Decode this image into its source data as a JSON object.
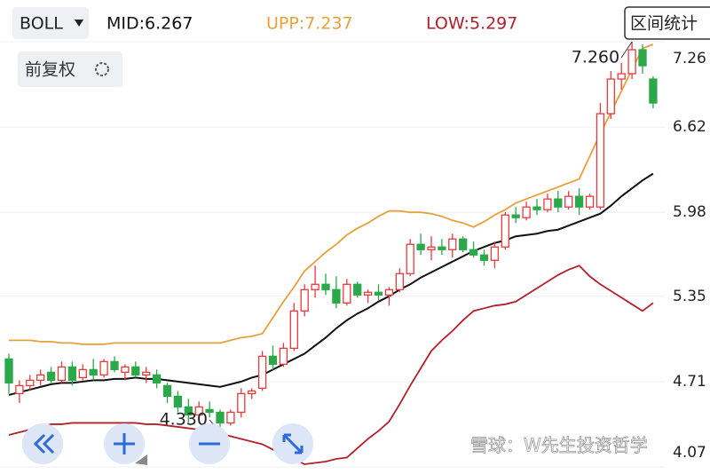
{
  "header": {
    "indicator": "BOLL",
    "mid": "MID:6.267",
    "upp": "UPP:7.237",
    "low": "LOW:5.297",
    "button": "区间统计"
  },
  "adjust": "前复权",
  "watermark": "雪球：W先生投资哲学",
  "chart_data": {
    "type": "candlestick",
    "up_color": "#e8393d",
    "down_color": "#2aa84a",
    "open": [
      4.88,
      4.62,
      4.68,
      4.72,
      4.78,
      4.72,
      4.82,
      4.74,
      4.8,
      4.76,
      4.86,
      4.78,
      4.82,
      4.76,
      4.76,
      4.68,
      4.6,
      4.52,
      4.46,
      4.5,
      4.48,
      4.4,
      4.48,
      4.62,
      4.66,
      4.9,
      4.84,
      4.96,
      5.24,
      5.4,
      5.44,
      5.4,
      5.3,
      5.44,
      5.36,
      5.38,
      5.36,
      5.4,
      5.52,
      5.74,
      5.7,
      5.72,
      5.7,
      5.78,
      5.7,
      5.66,
      5.62,
      5.72,
      5.96,
      5.94,
      6.02,
      6.0,
      6.08,
      6.02,
      6.1,
      6.02,
      6.02,
      6.72,
      6.98,
      7.02,
      7.2,
      6.98
    ],
    "high": [
      4.92,
      4.72,
      4.76,
      4.8,
      4.82,
      4.86,
      4.86,
      4.84,
      4.88,
      4.88,
      4.9,
      4.84,
      4.86,
      4.82,
      4.8,
      4.7,
      4.64,
      4.58,
      4.56,
      4.56,
      4.5,
      4.5,
      4.66,
      4.66,
      4.94,
      4.98,
      5.0,
      5.3,
      5.44,
      5.58,
      5.52,
      5.5,
      5.48,
      5.46,
      5.4,
      5.44,
      5.42,
      5.56,
      5.78,
      5.82,
      5.8,
      5.78,
      5.82,
      5.8,
      5.76,
      5.7,
      5.76,
      5.98,
      6.02,
      6.06,
      6.08,
      6.12,
      6.14,
      6.14,
      6.16,
      6.12,
      6.8,
      7.04,
      7.1,
      7.26,
      7.24,
      7.0
    ],
    "low": [
      4.62,
      4.55,
      4.64,
      4.68,
      4.7,
      4.7,
      4.68,
      4.72,
      4.72,
      4.74,
      4.78,
      4.72,
      4.74,
      4.7,
      4.66,
      4.55,
      4.48,
      4.4,
      4.4,
      4.44,
      4.33,
      4.38,
      4.44,
      4.58,
      4.64,
      4.8,
      4.82,
      4.94,
      5.2,
      5.34,
      5.36,
      5.26,
      5.28,
      5.34,
      5.3,
      5.32,
      5.28,
      5.38,
      5.5,
      5.66,
      5.62,
      5.66,
      5.64,
      5.68,
      5.64,
      5.58,
      5.56,
      5.7,
      5.9,
      5.92,
      5.96,
      5.98,
      5.98,
      6.0,
      5.96,
      6.0,
      6.0,
      6.68,
      6.9,
      6.98,
      7.02,
      6.76
    ],
    "close": [
      4.7,
      4.68,
      4.72,
      4.76,
      4.72,
      4.82,
      4.72,
      4.8,
      4.76,
      4.86,
      4.8,
      4.82,
      4.76,
      4.78,
      4.7,
      4.6,
      4.52,
      4.46,
      4.52,
      4.48,
      4.4,
      4.48,
      4.62,
      4.64,
      4.9,
      4.84,
      4.96,
      5.24,
      5.4,
      5.44,
      5.4,
      5.3,
      5.44,
      5.36,
      5.38,
      5.36,
      5.4,
      5.52,
      5.74,
      5.7,
      5.72,
      5.7,
      5.78,
      5.7,
      5.66,
      5.62,
      5.72,
      5.96,
      5.94,
      6.02,
      6.0,
      6.08,
      6.02,
      6.1,
      6.02,
      6.1,
      6.72,
      6.98,
      7.02,
      7.2,
      7.08,
      6.8
    ],
    "bands": [
      {
        "color": "#111111",
        "values": [
          4.61,
          4.63,
          4.65,
          4.67,
          4.69,
          4.7,
          4.7,
          4.71,
          4.72,
          4.72,
          4.73,
          4.73,
          4.74,
          4.73,
          4.73,
          4.72,
          4.71,
          4.7,
          4.69,
          4.68,
          4.67,
          4.69,
          4.71,
          4.74,
          4.76,
          4.8,
          4.84,
          4.88,
          4.92,
          4.98,
          5.04,
          5.11,
          5.17,
          5.22,
          5.26,
          5.31,
          5.35,
          5.4,
          5.44,
          5.49,
          5.53,
          5.57,
          5.61,
          5.65,
          5.69,
          5.72,
          5.75,
          5.77,
          5.8,
          5.81,
          5.82,
          5.84,
          5.85,
          5.88,
          5.91,
          5.94,
          5.97,
          6.03,
          6.1,
          6.16,
          6.22,
          6.27
        ]
      },
      {
        "color": "#e8a03c",
        "values": [
          5.02,
          5.02,
          5.02,
          5.01,
          5.01,
          5.0,
          5.0,
          4.99,
          4.99,
          4.99,
          5.0,
          5.0,
          5.0,
          5.0,
          5.0,
          5.0,
          5.0,
          5.0,
          5.0,
          5.0,
          5.0,
          5.02,
          5.04,
          5.05,
          5.07,
          5.19,
          5.31,
          5.42,
          5.54,
          5.61,
          5.68,
          5.74,
          5.81,
          5.86,
          5.9,
          5.95,
          5.99,
          5.99,
          5.98,
          5.98,
          5.97,
          5.95,
          5.92,
          5.9,
          5.87,
          5.91,
          5.96,
          6.0,
          6.05,
          6.08,
          6.11,
          6.14,
          6.17,
          6.2,
          6.23,
          6.4,
          6.57,
          6.73,
          6.89,
          7.05,
          7.21,
          7.24
        ]
      },
      {
        "color": "#b3202a",
        "values": [
          4.31,
          4.33,
          4.35,
          4.37,
          4.39,
          4.39,
          4.4,
          4.4,
          4.4,
          4.4,
          4.4,
          4.4,
          4.4,
          4.39,
          4.39,
          4.38,
          4.37,
          4.36,
          4.35,
          4.33,
          4.32,
          4.3,
          4.28,
          4.26,
          4.24,
          4.2,
          4.16,
          4.13,
          4.09,
          4.1,
          4.11,
          4.13,
          4.14,
          4.21,
          4.28,
          4.34,
          4.41,
          4.54,
          4.68,
          4.81,
          4.94,
          5.02,
          5.09,
          5.17,
          5.24,
          5.26,
          5.28,
          5.29,
          5.31,
          5.36,
          5.41,
          5.46,
          5.51,
          5.55,
          5.58,
          5.5,
          5.44,
          5.39,
          5.34,
          5.29,
          5.24,
          5.3
        ]
      }
    ],
    "ylim": [
      4.07,
      7.26
    ],
    "yticks": [
      7.26,
      6.62,
      5.98,
      5.35,
      4.71,
      4.07
    ],
    "grid": true,
    "annotations": [
      {
        "label": "7.260",
        "value": 7.26
      },
      {
        "label": "4.330",
        "value": 4.33
      }
    ]
  }
}
